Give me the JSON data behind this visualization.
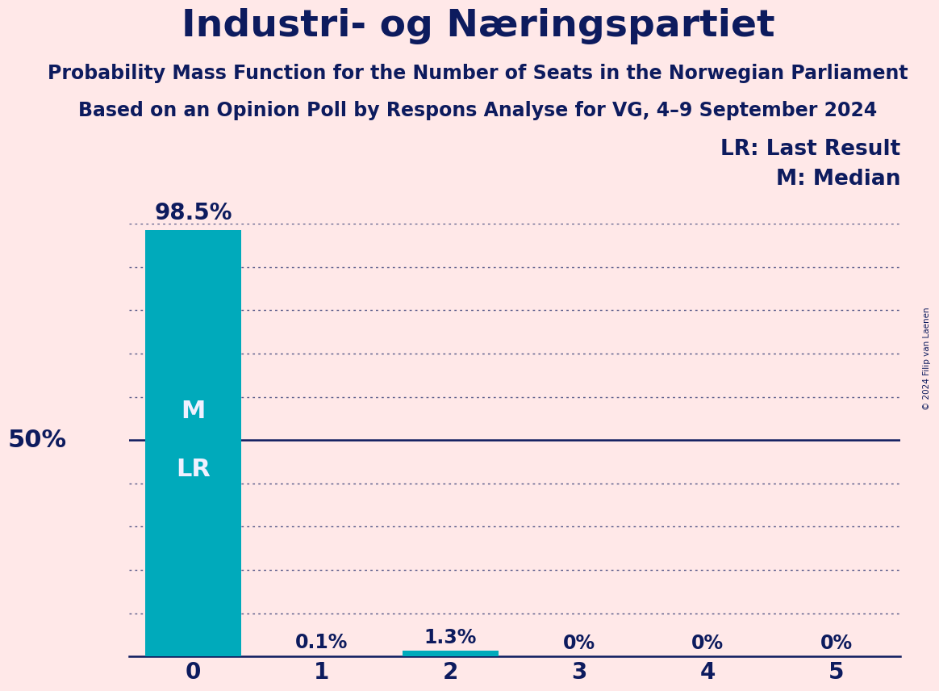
{
  "title": "Industri- og Næringspartiet",
  "subtitle1": "Probability Mass Function for the Number of Seats in the Norwegian Parliament",
  "subtitle2": "Based on an Opinion Poll by Respons Analyse for VG, 4–9 September 2024",
  "copyright": "© 2024 Filip van Laenen",
  "categories": [
    0,
    1,
    2,
    3,
    4,
    5
  ],
  "values": [
    98.5,
    0.1,
    1.3,
    0.0,
    0.0,
    0.0
  ],
  "bar_color": "#00AABB",
  "background_color": "#FFE8E8",
  "text_color_dark": "#0D1B5E",
  "text_color_white": "#F0F0FF",
  "ylim": [
    0,
    100
  ],
  "yticks": [
    0,
    10,
    20,
    30,
    40,
    50,
    60,
    70,
    80,
    90,
    100
  ],
  "ylabel_50": "50%",
  "annotations": {
    "0": {
      "label": "98.5%",
      "show_m": true,
      "show_lr": true
    },
    "1": {
      "label": "0.1%",
      "show_m": false,
      "show_lr": false
    },
    "2": {
      "label": "1.3%",
      "show_m": false,
      "show_lr": false
    },
    "3": {
      "label": "0%",
      "show_m": false,
      "show_lr": false
    },
    "4": {
      "label": "0%",
      "show_m": false,
      "show_lr": false
    },
    "5": {
      "label": "0%",
      "show_m": false,
      "show_lr": false
    }
  },
  "legend_lr": "LR: Last Result",
  "legend_m": "M: Median",
  "title_fontsize": 34,
  "subtitle_fontsize": 17,
  "bar_label_fontsize": 17,
  "axis_tick_fontsize": 20,
  "legend_fontsize": 19,
  "ylabel_fontsize": 22,
  "bar_width": 0.75,
  "m_label": "M",
  "lr_label": "LR"
}
